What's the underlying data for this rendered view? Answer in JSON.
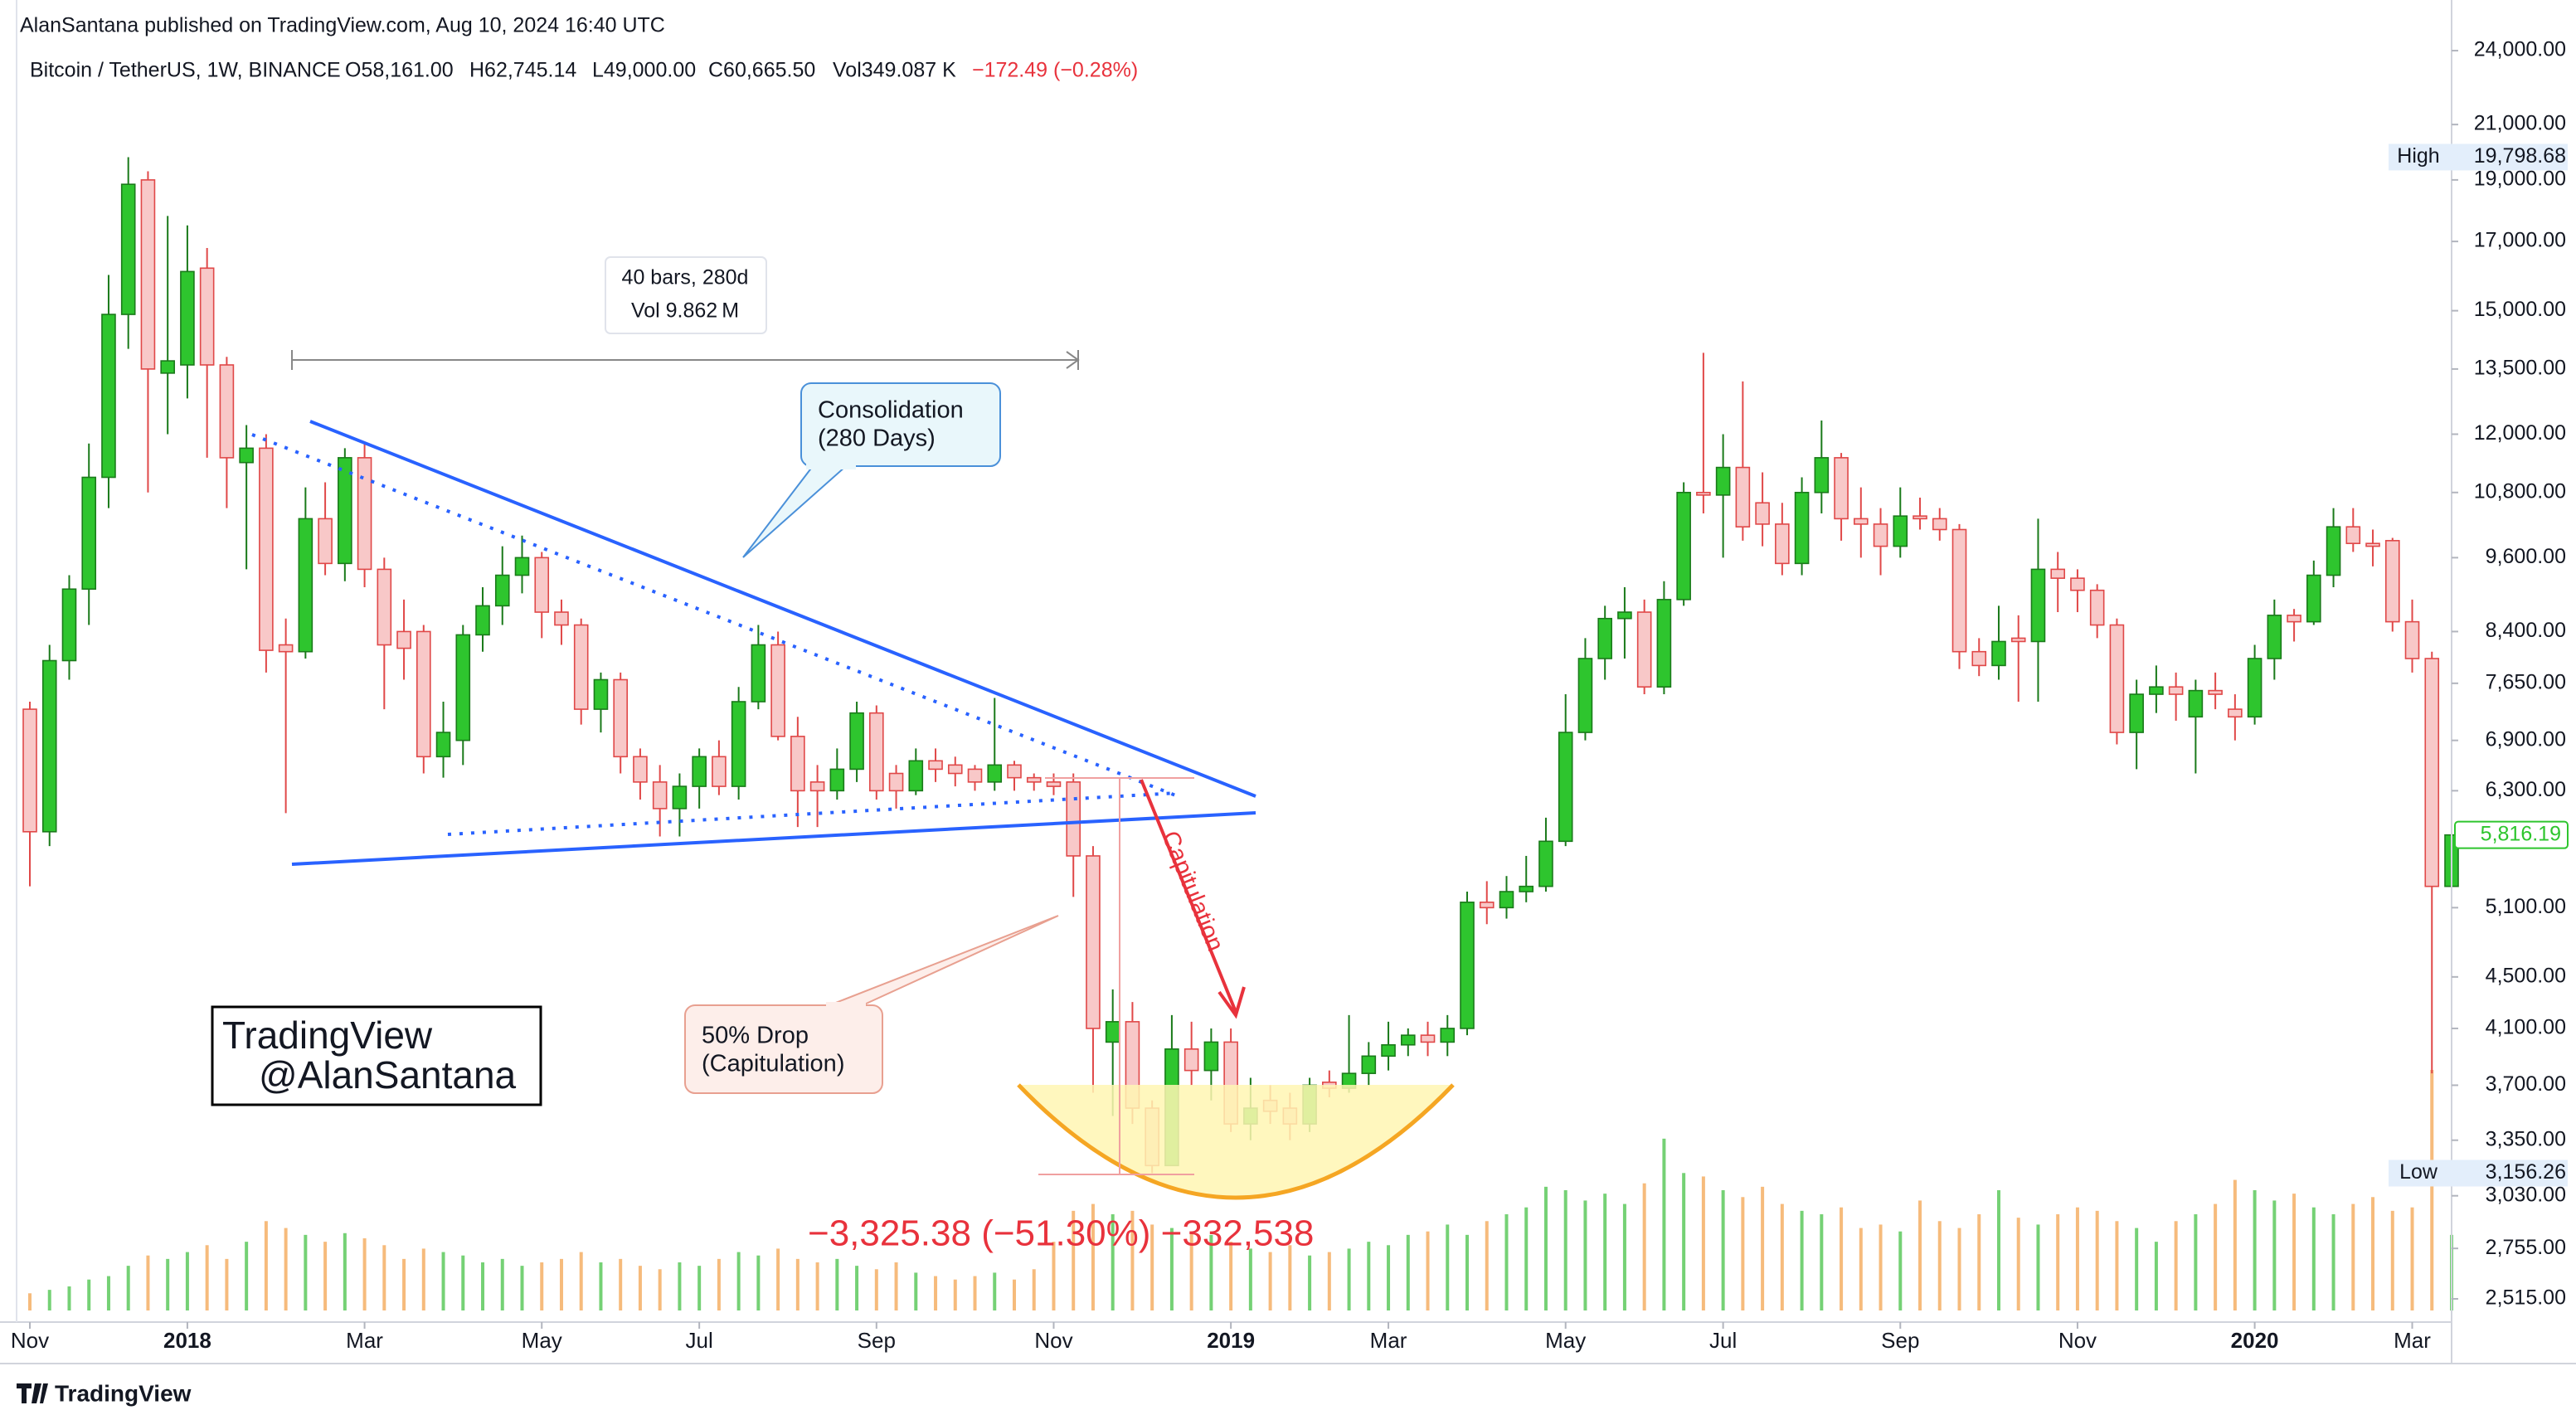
{
  "chart_data": {
    "type": "candlestick",
    "header": "AlanSantana published on TradingView.com, Aug 10, 2024 16:40 UTC",
    "legend": {
      "symbol": "Bitcoin / TetherUS, 1W, BINANCE",
      "open": "O58,161.00",
      "high": "H62,745.14",
      "low": "L49,000.00",
      "close": "C60,665.50",
      "volume": "Vol349.087 K",
      "change": "−172.49 (−0.28%)"
    },
    "footer": "TradingView",
    "watermark": [
      "TradingView",
      "@AlanSantana"
    ],
    "annotations": {
      "measure_bars": "40 bars, 280d",
      "measure_volume": "Vol 9.862 M",
      "consolidation": [
        "Consolidation",
        "(280 Days)"
      ],
      "drop": [
        "50% Drop",
        "(Capitulation)"
      ],
      "capitulation": "Capitulation",
      "drop_measure": "−3,325.38 (−51.30%) −332,538"
    },
    "categories": [
      "Nov",
      null,
      null,
      null,
      null,
      null,
      null,
      null,
      "2018",
      null,
      null,
      null,
      null,
      null,
      null,
      null,
      null,
      "Mar",
      null,
      null,
      null,
      null,
      null,
      null,
      null,
      null,
      "May",
      null,
      null,
      null,
      null,
      null,
      null,
      null,
      "Jul",
      null,
      null,
      null,
      null,
      null,
      null,
      null,
      null,
      "Sep",
      null,
      null,
      null,
      null,
      null,
      null,
      null,
      null,
      "Nov",
      null,
      null,
      null,
      null,
      null,
      null,
      null,
      null,
      "2019",
      null,
      null,
      null,
      null,
      null,
      null,
      null,
      "Mar",
      null,
      null,
      null,
      null,
      null,
      null,
      null,
      null,
      "May",
      null,
      null,
      null,
      null,
      null,
      null,
      null,
      "Jul",
      null,
      null,
      null,
      null,
      null,
      null,
      null,
      null,
      "Sep",
      null,
      null,
      null,
      null,
      null,
      null,
      null,
      null,
      "Nov",
      null,
      null,
      null,
      null,
      null,
      null,
      null,
      null,
      "2020",
      null,
      null,
      null,
      null,
      null,
      null,
      null,
      "Mar",
      null,
      null
    ],
    "open": [
      7300,
      5850,
      7970,
      9070,
      11100,
      14900,
      19000,
      13400,
      13600,
      16200,
      13600,
      11400,
      11700,
      8200,
      8100,
      10300,
      9500,
      11500,
      9400,
      8400,
      8400,
      6700,
      6900,
      8350,
      8800,
      9300,
      9600,
      8700,
      8500,
      7300,
      7700,
      6700,
      6400,
      6100,
      6350,
      6700,
      6350,
      7400,
      8200,
      6950,
      6400,
      6300,
      6550,
      7250,
      6500,
      6300,
      6650,
      6600,
      6550,
      6400,
      6600,
      6450,
      6400,
      6400,
      5600,
      4000,
      4150,
      3550,
      3200,
      3950,
      3800,
      4000,
      3450,
      3600,
      3550,
      3450,
      3720,
      3680,
      3780,
      3900,
      3980,
      4050,
      4000,
      4100,
      5150,
      5100,
      5250,
      5300,
      5750,
      7000,
      8000,
      8600,
      8700,
      7600,
      8900,
      10800,
      10750,
      11300,
      10600,
      10200,
      9500,
      10800,
      11500,
      10300,
      10200,
      9800,
      10350,
      10300,
      10100,
      8100,
      7900,
      8300,
      8250,
      9400,
      9250,
      9050,
      8500,
      7000,
      7500,
      7600,
      7200,
      7550,
      7300,
      7200,
      8000,
      8650,
      8550,
      9300,
      10150,
      9850,
      9900,
      8550,
      8000,
      5300
    ],
    "high": [
      7400,
      8200,
      9300,
      11800,
      16000,
      19798.68,
      19300,
      17800,
      17500,
      16800,
      13800,
      12200,
      12000,
      8600,
      10900,
      11000,
      11700,
      11800,
      9600,
      8900,
      8500,
      7400,
      8500,
      9100,
      9800,
      9990,
      9700,
      8900,
      8600,
      7800,
      7800,
      6800,
      6600,
      6500,
      6800,
      6900,
      7600,
      8500,
      8400,
      7200,
      6600,
      6800,
      7400,
      7350,
      6600,
      6800,
      6800,
      6700,
      6600,
      7450,
      6650,
      6500,
      6500,
      6500,
      5700,
      4400,
      4300,
      3600,
      4200,
      4150,
      4100,
      4100,
      3750,
      3700,
      3650,
      3750,
      3800,
      4200,
      4000,
      4150,
      4100,
      4150,
      4200,
      5250,
      5350,
      5400,
      5600,
      6000,
      7500,
      8300,
      8800,
      9100,
      8900,
      9200,
      11000,
      13900,
      12000,
      13200,
      11200,
      10600,
      11100,
      12300,
      11600,
      10900,
      10500,
      10900,
      10700,
      10500,
      10200,
      8300,
      8800,
      8650,
      10300,
      9700,
      9400,
      9150,
      8600,
      7700,
      7900,
      7800,
      7700,
      7800,
      7500,
      8200,
      8900,
      8750,
      9550,
      10500,
      10500,
      10100,
      9950,
      8900,
      8100,
      6000
    ],
    "low": [
      5300,
      5700,
      7700,
      8500,
      10500,
      14000,
      10800,
      12000,
      12800,
      11500,
      10500,
      9400,
      7800,
      6050,
      8000,
      9300,
      9200,
      9100,
      7300,
      7700,
      6500,
      6450,
      6600,
      8100,
      8500,
      9000,
      8300,
      8200,
      7100,
      7000,
      6500,
      6200,
      5800,
      5800,
      6100,
      6250,
      6200,
      7300,
      6900,
      5900,
      5900,
      6200,
      6400,
      6200,
      6100,
      6250,
      6400,
      6350,
      6300,
      6300,
      6300,
      6300,
      6250,
      5200,
      3650,
      3500,
      3450,
      3156.26,
      3200,
      3700,
      3600,
      3400,
      3350,
      3450,
      3350,
      3400,
      3620,
      3650,
      3700,
      3800,
      3900,
      3900,
      3900,
      4050,
      4950,
      5000,
      5150,
      5250,
      5700,
      6900,
      7700,
      8000,
      7500,
      7500,
      8800,
      10400,
      9600,
      9900,
      9800,
      9300,
      9300,
      10400,
      9900,
      9600,
      9300,
      9600,
      10100,
      9900,
      7850,
      7750,
      7700,
      7400,
      7400,
      8700,
      8700,
      8300,
      6850,
      6550,
      7250,
      7150,
      6500,
      7300,
      6900,
      7100,
      7700,
      8250,
      8500,
      9100,
      9700,
      9450,
      8400,
      7800,
      3780,
      5200
    ],
    "close": [
      5850,
      7970,
      9070,
      11100,
      14900,
      18850,
      13500,
      13700,
      16100,
      13600,
      11500,
      11700,
      8120,
      8100,
      10300,
      9500,
      11500,
      9400,
      8200,
      8150,
      6700,
      7000,
      8350,
      8800,
      9300,
      9600,
      8700,
      8500,
      7300,
      7700,
      6700,
      6400,
      6100,
      6350,
      6700,
      6350,
      7400,
      8200,
      6950,
      6300,
      6300,
      6550,
      7250,
      6300,
      6300,
      6650,
      6550,
      6500,
      6400,
      6600,
      6450,
      6400,
      6350,
      5600,
      4100,
      4150,
      3550,
      3200,
      3950,
      3800,
      4000,
      3450,
      3550,
      3530,
      3450,
      3700,
      3680,
      3780,
      3900,
      3980,
      4050,
      4000,
      4100,
      5150,
      5100,
      5250,
      5300,
      5750,
      7000,
      8000,
      8600,
      8700,
      7600,
      8900,
      10800,
      10750,
      11300,
      10150,
      10200,
      9500,
      10800,
      11500,
      10300,
      10200,
      9800,
      10350,
      10300,
      10100,
      8100,
      7900,
      8250,
      8250,
      9400,
      9250,
      9050,
      8500,
      7000,
      7500,
      7600,
      7500,
      7550,
      7500,
      7200,
      8000,
      8650,
      8550,
      9300,
      10150,
      9850,
      9800,
      8550,
      8000,
      5300,
      5816.19
    ],
    "volume": [
      50,
      60,
      70,
      90,
      100,
      130,
      160,
      150,
      170,
      190,
      150,
      200,
      260,
      240,
      220,
      200,
      225,
      210,
      190,
      150,
      180,
      170,
      160,
      140,
      150,
      130,
      140,
      150,
      170,
      140,
      150,
      130,
      120,
      140,
      130,
      150,
      170,
      160,
      180,
      150,
      140,
      150,
      130,
      120,
      140,
      110,
      100,
      90,
      100,
      110,
      90,
      120,
      200,
      290,
      310,
      280,
      290,
      250,
      240,
      230,
      220,
      200,
      180,
      170,
      190,
      160,
      170,
      180,
      200,
      190,
      220,
      230,
      250,
      220,
      260,
      280,
      300,
      360,
      350,
      320,
      340,
      310,
      370,
      500,
      400,
      390,
      350,
      330,
      360,
      310,
      290,
      280,
      300,
      240,
      250,
      230,
      320,
      260,
      240,
      280,
      350,
      270,
      250,
      280,
      300,
      290,
      260,
      240,
      200,
      260,
      280,
      310,
      380,
      350,
      320,
      340,
      300,
      280,
      310,
      330,
      290,
      300,
      700,
      220
    ],
    "up_color": "#2ec52e",
    "down_color": "#f8c8c8",
    "volume_up_color": "#66cc66",
    "volume_down_color": "#f5b46e",
    "log_scale": true,
    "grid": false,
    "ylim": [
      2390,
      26300
    ],
    "yticks": [
      {
        "value": 24000,
        "label": "24,000.00"
      },
      {
        "value": 21000,
        "label": "21,000.00"
      },
      {
        "value": 19000,
        "label": "19,000.00"
      },
      {
        "value": 17000,
        "label": "17,000.00"
      },
      {
        "value": 15000,
        "label": "15,000.00"
      },
      {
        "value": 13500,
        "label": "13,500.00"
      },
      {
        "value": 12000,
        "label": "12,000.00"
      },
      {
        "value": 10800,
        "label": "10,800.00"
      },
      {
        "value": 9600,
        "label": "9,600.00"
      },
      {
        "value": 8400,
        "label": "8,400.00"
      },
      {
        "value": 7650,
        "label": "7,650.00"
      },
      {
        "value": 6900,
        "label": "6,900.00"
      },
      {
        "value": 6300,
        "label": "6,300.00"
      },
      {
        "value": 5100,
        "label": "5,100.00"
      },
      {
        "value": 4500,
        "label": "4,500.00"
      },
      {
        "value": 4100,
        "label": "4,100.00"
      },
      {
        "value": 3700,
        "label": "3,700.00"
      },
      {
        "value": 3350,
        "label": "3,350.00"
      },
      {
        "value": 3030,
        "label": "3,030.00"
      },
      {
        "value": 2755,
        "label": "2,755.00"
      },
      {
        "value": 2515,
        "label": "2,515.00"
      }
    ],
    "high_marker": {
      "label": "High",
      "value": 19798.68,
      "value_label": "19,798.68"
    },
    "low_marker": {
      "label": "Low",
      "value": 3156.26,
      "value_label": "3,156.26"
    },
    "last_price": {
      "value": 5816.19,
      "value_label": "5,816.19"
    }
  }
}
